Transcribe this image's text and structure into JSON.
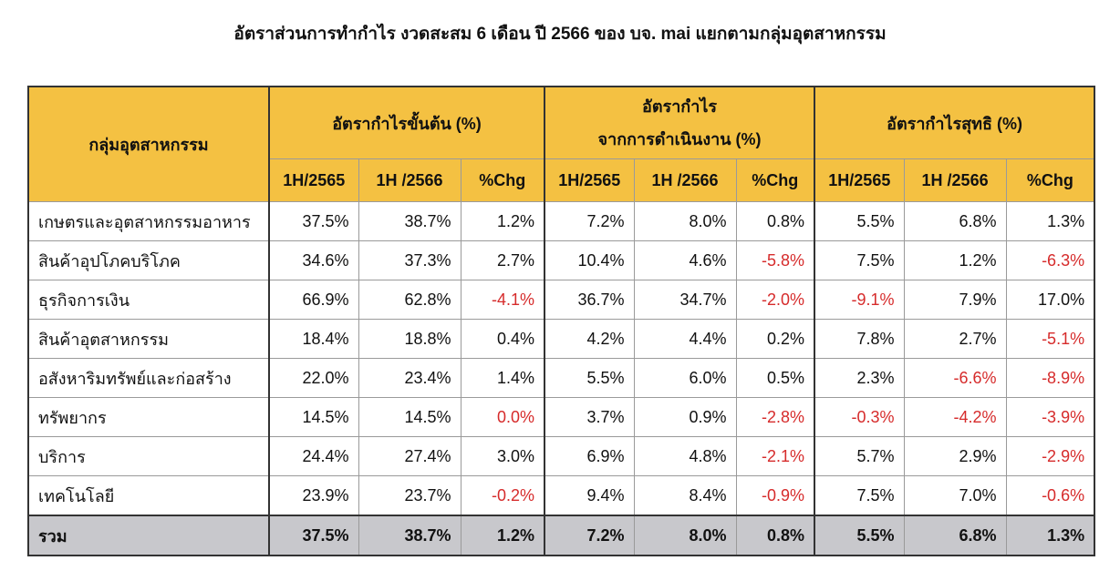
{
  "title": "อัตราส่วนการทำกำไร งวดสะสม 6 เดือน ปี 2566 ของ บจ. mai แยกตามกลุ่มอุตสาหกรรม",
  "header": {
    "industry": "กลุ่มอุตสาหกรรม",
    "groups": [
      {
        "line1": "อัตรากำไรขั้นต้น (%)",
        "line2": ""
      },
      {
        "line1": "อัตรากำไร",
        "line2": "จากการดำเนินงาน (%)"
      },
      {
        "line1": "อัตรากำไรสุทธิ (%)",
        "line2": ""
      }
    ],
    "sub": [
      "1H/2565",
      "1H /2566",
      "%Chg"
    ]
  },
  "rows": [
    {
      "name": "เกษตรและอุตสาหกรรมอาหาร",
      "vals": [
        "37.5%",
        "38.7%",
        "1.2%",
        "7.2%",
        "8.0%",
        "0.8%",
        "5.5%",
        "6.8%",
        "1.3%"
      ]
    },
    {
      "name": "สินค้าอุปโภคบริโภค",
      "vals": [
        "34.6%",
        "37.3%",
        "2.7%",
        "10.4%",
        "4.6%",
        "-5.8%",
        "7.5%",
        "1.2%",
        "-6.3%"
      ]
    },
    {
      "name": "ธุรกิจการเงิน",
      "vals": [
        "66.9%",
        "62.8%",
        "-4.1%",
        "36.7%",
        "34.7%",
        "-2.0%",
        "-9.1%",
        "7.9%",
        "17.0%"
      ]
    },
    {
      "name": "สินค้าอุตสาหกรรม",
      "vals": [
        "18.4%",
        "18.8%",
        "0.4%",
        "4.2%",
        "4.4%",
        "0.2%",
        "7.8%",
        "2.7%",
        "-5.1%"
      ]
    },
    {
      "name": "อสังหาริมทรัพย์และก่อสร้าง",
      "vals": [
        "22.0%",
        "23.4%",
        "1.4%",
        "5.5%",
        "6.0%",
        "0.5%",
        "2.3%",
        "-6.6%",
        "-8.9%"
      ]
    },
    {
      "name": "ทรัพยากร",
      "vals": [
        "14.5%",
        "14.5%",
        "0.0%",
        "3.7%",
        "0.9%",
        "-2.8%",
        "-0.3%",
        "-4.2%",
        "-3.9%"
      ]
    },
    {
      "name": "บริการ",
      "vals": [
        "24.4%",
        "27.4%",
        "3.0%",
        "6.9%",
        "4.8%",
        "-2.1%",
        "5.7%",
        "2.9%",
        "-2.9%"
      ]
    },
    {
      "name": "เทคโนโลยี",
      "vals": [
        "23.9%",
        "23.7%",
        "-0.2%",
        "9.4%",
        "8.4%",
        "-0.9%",
        "7.5%",
        "7.0%",
        "-0.6%"
      ]
    }
  ],
  "negative_flags": [
    [
      false,
      false,
      false,
      false,
      false,
      false,
      false,
      false,
      false
    ],
    [
      false,
      false,
      false,
      false,
      false,
      true,
      false,
      false,
      true
    ],
    [
      false,
      false,
      true,
      false,
      false,
      true,
      true,
      false,
      false
    ],
    [
      false,
      false,
      false,
      false,
      false,
      false,
      false,
      false,
      true
    ],
    [
      false,
      false,
      false,
      false,
      false,
      false,
      false,
      true,
      true
    ],
    [
      false,
      false,
      true,
      false,
      false,
      true,
      true,
      true,
      true
    ],
    [
      false,
      false,
      false,
      false,
      false,
      true,
      false,
      false,
      true
    ],
    [
      false,
      false,
      true,
      false,
      false,
      true,
      false,
      false,
      true
    ]
  ],
  "total": {
    "name": "รวม",
    "vals": [
      "37.5%",
      "38.7%",
      "1.2%",
      "7.2%",
      "8.0%",
      "0.8%",
      "5.5%",
      "6.8%",
      "1.3%"
    ]
  },
  "colors": {
    "header_bg": "#f4c142",
    "total_bg": "#c8c8cc",
    "negative": "#d62b2b"
  }
}
